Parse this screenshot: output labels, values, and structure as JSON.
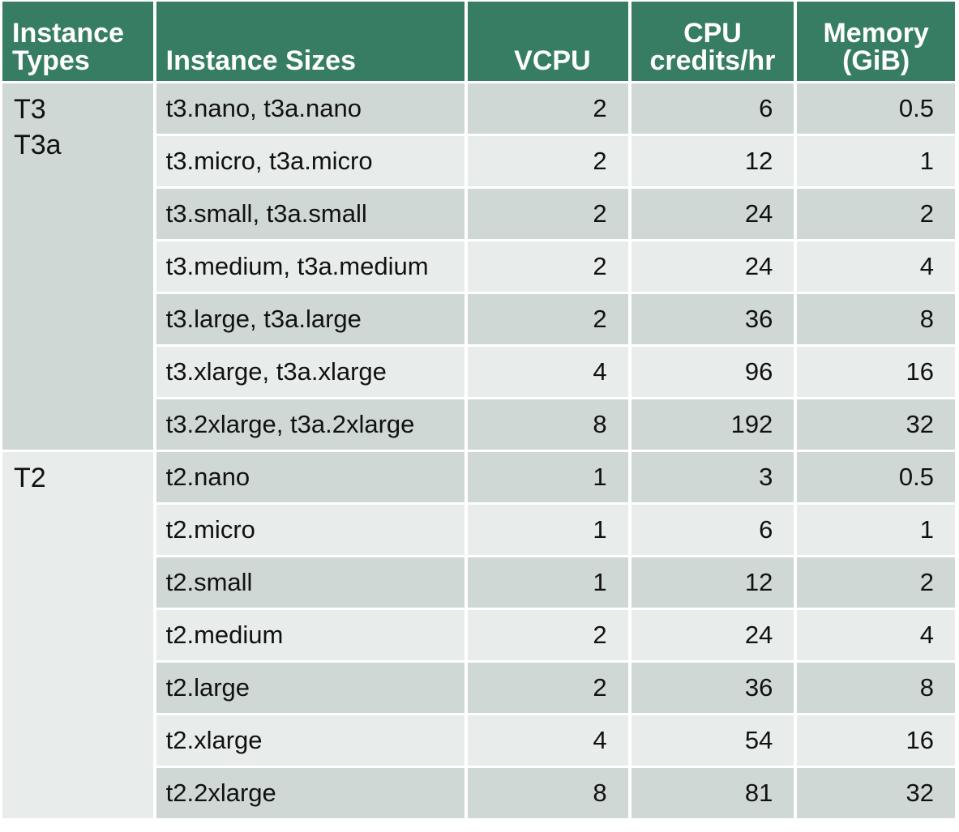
{
  "headers": {
    "type_line1": "Instance",
    "type_line2": "Types",
    "sizes": "Instance Sizes",
    "vcpu": "VCPU",
    "credits_line1": "CPU",
    "credits_line2": "credits/hr",
    "memory_line1": "Memory",
    "memory_line2": "(GiB)"
  },
  "groups": [
    {
      "label_lines": [
        "T3",
        "T3a"
      ],
      "rows": [
        {
          "size": "t3.nano, t3a.nano",
          "vcpu": "2",
          "credits": "6",
          "memory": "0.5"
        },
        {
          "size": "t3.micro, t3a.micro",
          "vcpu": "2",
          "credits": "12",
          "memory": "1"
        },
        {
          "size": "t3.small, t3a.small",
          "vcpu": "2",
          "credits": "24",
          "memory": "2"
        },
        {
          "size": "t3.medium, t3a.medium",
          "vcpu": "2",
          "credits": "24",
          "memory": "4"
        },
        {
          "size": "t3.large, t3a.large",
          "vcpu": "2",
          "credits": "36",
          "memory": "8"
        },
        {
          "size": "t3.xlarge, t3a.xlarge",
          "vcpu": "4",
          "credits": "96",
          "memory": "16"
        },
        {
          "size": "t3.2xlarge, t3a.2xlarge",
          "vcpu": "8",
          "credits": "192",
          "memory": "32"
        }
      ]
    },
    {
      "label_lines": [
        "T2"
      ],
      "rows": [
        {
          "size": "t2.nano",
          "vcpu": "1",
          "credits": "3",
          "memory": "0.5"
        },
        {
          "size": "t2.micro",
          "vcpu": "1",
          "credits": "6",
          "memory": "1"
        },
        {
          "size": "t2.small",
          "vcpu": "1",
          "credits": "12",
          "memory": "2"
        },
        {
          "size": "t2.medium",
          "vcpu": "2",
          "credits": "24",
          "memory": "4"
        },
        {
          "size": "t2.large",
          "vcpu": "2",
          "credits": "36",
          "memory": "8"
        },
        {
          "size": "t2.xlarge",
          "vcpu": "4",
          "credits": "54",
          "memory": "16"
        },
        {
          "size": "t2.2xlarge",
          "vcpu": "8",
          "credits": "81",
          "memory": "32"
        }
      ]
    }
  ],
  "colors": {
    "header_bg": "#367d63",
    "row_dark": "#cfd8d4",
    "row_light": "#e8edeb"
  }
}
